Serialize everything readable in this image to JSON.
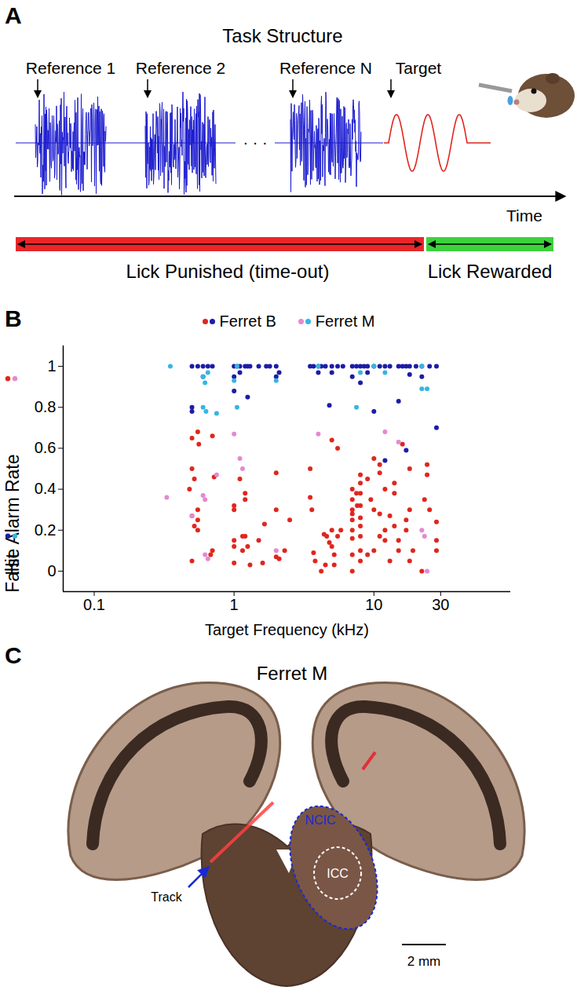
{
  "chart_data": {
    "type": "scatter",
    "panel_label": "B",
    "xlabel": "Target Frequency (kHz)",
    "ylabel": [
      "Hit",
      "False Alarm Rate"
    ],
    "log": "x",
    "xlim": [
      0.06,
      95
    ],
    "xticks": [
      0.1,
      1,
      10,
      30
    ],
    "ylim": [
      -0.1,
      1.1
    ],
    "yticks": [
      0,
      0.2,
      0.4,
      0.6,
      0.8,
      1
    ],
    "grid": false,
    "legend": "top",
    "marker": "circle",
    "series": [
      {
        "name": "Ferret B",
        "measure": "False Alarm Rate",
        "color": "#e0261e",
        "x": [
          0.5,
          0.5,
          0.52,
          0.55,
          0.5,
          0.52,
          0.55,
          0.55,
          0.5,
          0.55,
          0.56,
          0.48,
          0.7,
          0.72,
          0.7,
          0.68,
          1.0,
          1.0,
          1.0,
          1.0,
          1.0,
          1.1,
          1.2,
          1.2,
          1.15,
          1.2,
          1.25,
          1.15,
          1.3,
          1.5,
          1.6,
          1.65,
          2.0,
          2.0,
          2.0,
          2.1,
          2.5,
          2.3,
          3.5,
          3.5,
          3.6,
          3.7,
          3.8,
          4.2,
          4.5,
          4.4,
          4.6,
          4.8,
          5,
          5,
          5,
          5.2,
          5.2,
          5.5,
          5.5,
          5.8,
          7,
          7,
          7,
          7,
          7,
          7,
          7,
          7,
          7,
          7.5,
          7.6,
          8,
          8,
          8,
          8,
          8,
          8,
          8,
          8,
          8,
          9,
          9,
          9.5,
          10,
          10,
          10,
          11,
          11,
          11,
          11,
          12,
          12,
          12,
          13,
          13,
          14,
          14,
          14,
          15,
          15,
          16,
          17,
          17,
          18,
          18,
          18,
          19,
          22,
          23,
          24,
          24,
          25,
          28,
          28,
          28
        ],
        "values": [
          0.65,
          0.5,
          0.45,
          0.3,
          0.27,
          0.22,
          0.2,
          0.25,
          0.05,
          0.68,
          0.62,
          0.4,
          0.66,
          0.46,
          0.1,
          0.08,
          0.32,
          0.3,
          0.15,
          0.12,
          0.04,
          0.45,
          0.38,
          0.35,
          0.17,
          0.17,
          0.12,
          0.1,
          0.03,
          0.15,
          0.04,
          0.23,
          0.48,
          0.3,
          0.07,
          0.06,
          0.25,
          0.1,
          0.5,
          0.36,
          0.3,
          0.09,
          0.05,
          0,
          0.03,
          0.18,
          0.17,
          0.14,
          0.64,
          0.2,
          0.12,
          0.08,
          0.03,
          0.6,
          0.17,
          0.2,
          0.4,
          0.35,
          0.3,
          0.28,
          0.25,
          0.2,
          0.16,
          0.08,
          0,
          0.38,
          0.32,
          0.47,
          0.43,
          0.38,
          0.32,
          0.26,
          0.22,
          0.17,
          0.1,
          0.05,
          0.45,
          0.08,
          0.35,
          0.55,
          0.3,
          0.1,
          0.52,
          0.48,
          0.28,
          0.17,
          0.4,
          0.2,
          0.15,
          0.27,
          0.05,
          0.43,
          0.38,
          0.22,
          0.15,
          0.1,
          0.62,
          0.25,
          0.2,
          0.5,
          0.3,
          0.05,
          0.1,
          0,
          0.35,
          0.52,
          0.47,
          0.3,
          0.24,
          0.15,
          0.1
        ]
      },
      {
        "name": "Ferret M",
        "measure": "False Alarm Rate",
        "color": "#e48ad0",
        "x": [
          0.33,
          0.5,
          0.6,
          0.62,
          0.62,
          0.65,
          0.75,
          1.0,
          1.1,
          1.15,
          2,
          4,
          12,
          15,
          22,
          23,
          24
        ],
        "values": [
          0.36,
          0.27,
          0.37,
          0.35,
          0.08,
          0.06,
          0.47,
          0.67,
          0.55,
          0.5,
          0.1,
          0.67,
          0.68,
          0.63,
          0.2,
          0.17,
          0
        ]
      },
      {
        "name": "Ferret B",
        "measure": "Hit",
        "color": "#1c1ca8",
        "x": [
          0.5,
          0.55,
          0.6,
          0.65,
          0.7,
          1.0,
          1.05,
          1.1,
          1.2,
          1.25,
          1.3,
          1.5,
          1.7,
          1.8,
          2.0,
          3.5,
          3.7,
          4,
          4.2,
          4.5,
          5,
          5.5,
          6,
          7,
          7.5,
          8,
          8.5,
          9,
          10,
          11,
          12,
          13,
          15,
          16,
          17,
          18,
          20,
          22,
          25,
          28,
          0.5,
          0.5,
          0.6,
          1.0,
          1.0,
          1.25,
          2,
          2.1,
          4.8,
          5,
          7,
          8,
          9,
          10,
          12,
          15,
          17,
          18,
          22,
          28,
          4,
          1.1
        ],
        "values": [
          1,
          1,
          1,
          1,
          1,
          1,
          1,
          1,
          1,
          1,
          1,
          1,
          1,
          1,
          1,
          1,
          1,
          1,
          1,
          1,
          1,
          1,
          1,
          1,
          1,
          1,
          1,
          1,
          1,
          1,
          1,
          1,
          1,
          1,
          1,
          1,
          1,
          1,
          1,
          1,
          0.8,
          0.78,
          0.95,
          0.95,
          0.88,
          0.85,
          0.95,
          0.97,
          0.81,
          0.97,
          0.95,
          0.92,
          0.97,
          0.78,
          0.54,
          0.83,
          0.59,
          0.96,
          0.95,
          0.7,
          0.97,
          0.97
        ]
      },
      {
        "name": "Ferret M",
        "measure": "Hit",
        "color": "#36b6e0",
        "x": [
          0.35,
          0.6,
          0.62,
          0.6,
          0.63,
          0.75,
          1.0,
          1.05,
          1.05,
          2.0,
          4,
          7.5,
          10,
          12,
          22,
          22,
          24,
          0.65,
          8
        ],
        "values": [
          1,
          0.95,
          0.92,
          0.8,
          0.78,
          0.77,
          0.93,
          0.8,
          1,
          0.93,
          1,
          0.8,
          1,
          0.97,
          1,
          0.89,
          0.89,
          0.97,
          0.97
        ]
      }
    ]
  },
  "panel_a": {
    "label": "A",
    "title": "Task Structure",
    "stimuli": [
      "Reference 1",
      "Reference 2",
      "Reference N",
      "Target"
    ],
    "ellipsis": "· · ·",
    "axis_label": "Time",
    "periods": [
      "Lick Punished (time-out)",
      "Lick Rewarded"
    ]
  },
  "panel_c": {
    "label": "C",
    "title": "Ferret M",
    "regions": [
      "NCIC",
      "ICC"
    ],
    "track_label": "Track",
    "scale_bar": "2 mm"
  }
}
